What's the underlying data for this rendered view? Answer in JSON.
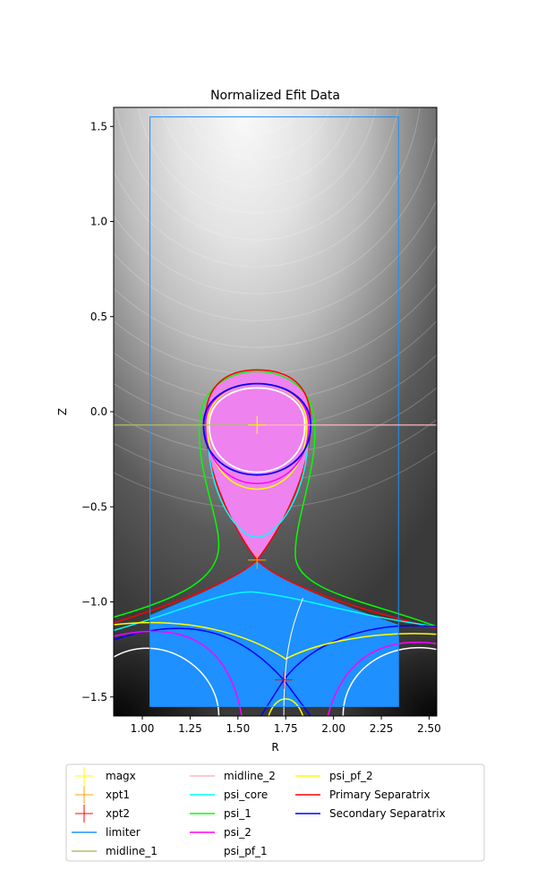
{
  "chart_data": {
    "type": "contour",
    "title": "Normalized Efit Data",
    "xlabel": "R",
    "ylabel": "Z",
    "xlim": [
      0.85,
      2.54
    ],
    "ylim": [
      -1.6,
      1.6
    ],
    "xticks": [
      1.0,
      1.25,
      1.5,
      1.75,
      2.0,
      2.25,
      2.5
    ],
    "xtick_labels": [
      "1.00",
      "1.25",
      "1.50",
      "1.75",
      "2.00",
      "2.25",
      "2.50"
    ],
    "yticks": [
      1.5,
      1.0,
      0.5,
      0.0,
      -0.5,
      -1.0,
      -1.5
    ],
    "ytick_labels": [
      "1.5",
      "1.0",
      "0.5",
      "0.0",
      "−0.5",
      "−1.0",
      "−1.5"
    ],
    "background": "grayscale filled contours of normalized psi",
    "regions": [
      {
        "name": "core",
        "color": "#ee82ee"
      },
      {
        "name": "private flux",
        "color": "#1e90ff"
      }
    ],
    "points": [
      {
        "name": "magx",
        "R": 1.6,
        "Z": -0.07,
        "color": "#ffff00"
      },
      {
        "name": "xpt1",
        "R": 1.6,
        "Z": -0.78,
        "color": "#ffa500"
      },
      {
        "name": "xpt2",
        "R": 1.74,
        "Z": -1.41,
        "color": "#ff0000"
      }
    ],
    "limiter": {
      "R_min": 1.04,
      "R_max": 2.34,
      "Z_min": -1.55,
      "Z_max": 1.55,
      "color": "#1e90ff"
    },
    "midline_1": {
      "Z": -0.07,
      "color": "#b5bd68"
    },
    "midline_2": {
      "Z": -0.07,
      "color": "#ffb6c1"
    },
    "legend": {
      "placement": "below",
      "entries": [
        {
          "label": "magx",
          "kind": "marker",
          "color": "#ffff00"
        },
        {
          "label": "xpt1",
          "kind": "marker",
          "color": "#ffa500"
        },
        {
          "label": "xpt2",
          "kind": "marker",
          "color": "#ff0000"
        },
        {
          "label": "limiter",
          "kind": "line",
          "color": "#1e90ff"
        },
        {
          "label": "midline_1",
          "kind": "line",
          "color": "#b5bd68"
        },
        {
          "label": "midline_2",
          "kind": "line",
          "color": "#ffb6c1"
        },
        {
          "label": "psi_core",
          "kind": "line",
          "color": "#00ffff"
        },
        {
          "label": "psi_1",
          "kind": "line",
          "color": "#00ff00"
        },
        {
          "label": "psi_2",
          "kind": "line",
          "color": "#ff00ff"
        },
        {
          "label": "psi_pf_1",
          "kind": "line",
          "color": "#ffffff"
        },
        {
          "label": "psi_pf_2",
          "kind": "line",
          "color": "#ffff00"
        },
        {
          "label": "Primary Separatrix",
          "kind": "line",
          "color": "#ff0000"
        },
        {
          "label": "Secondary Separatrix",
          "kind": "line",
          "color": "#0000ff"
        }
      ]
    }
  }
}
